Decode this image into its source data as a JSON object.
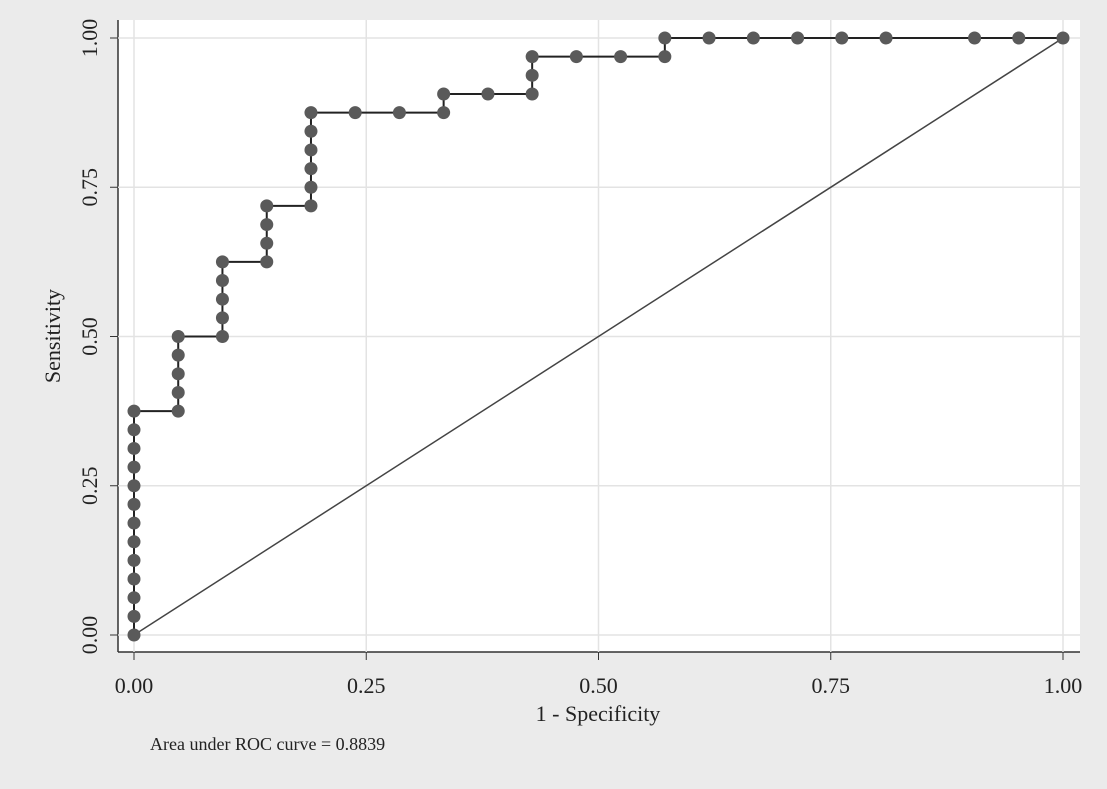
{
  "chart_data": {
    "type": "line",
    "ylabel": "Sensitivity",
    "xlabel": "1 - Specificity",
    "note": "Area under ROC curve = 0.8839",
    "color": "#5a5a5a",
    "grid": true,
    "x": [
      0,
      0,
      0,
      0,
      0,
      0,
      0,
      0,
      0,
      0,
      0,
      0,
      0,
      0.0476,
      0.0476,
      0.0476,
      0.0476,
      0.0476,
      0.0952,
      0.0952,
      0.0952,
      0.0952,
      0.0952,
      0.1429,
      0.1429,
      0.1429,
      0.1429,
      0.1905,
      0.1905,
      0.1905,
      0.1905,
      0.1905,
      0.1905,
      0.2381,
      0.2857,
      0.3333,
      0.3333,
      0.381,
      0.4286,
      0.4286,
      0.4286,
      0.4762,
      0.5238,
      0.5714,
      0.5714,
      0.619,
      0.6667,
      0.7143,
      0.7619,
      0.8095,
      0.9048,
      0.9524,
      1
    ],
    "values": [
      0,
      0.03125,
      0.0625,
      0.09375,
      0.125,
      0.15625,
      0.1875,
      0.21875,
      0.25,
      0.28125,
      0.3125,
      0.34375,
      0.375,
      0.375,
      0.40625,
      0.4375,
      0.46875,
      0.5,
      0.5,
      0.53125,
      0.5625,
      0.59375,
      0.625,
      0.625,
      0.65625,
      0.6875,
      0.71875,
      0.71875,
      0.75,
      0.78125,
      0.8125,
      0.84375,
      0.875,
      0.875,
      0.875,
      0.875,
      0.90625,
      0.90625,
      0.90625,
      0.9375,
      0.96875,
      0.96875,
      0.96875,
      0.96875,
      1,
      1,
      1,
      1,
      1,
      1,
      1,
      1,
      1
    ],
    "xlim": [
      0,
      1
    ],
    "ylim": [
      0,
      1
    ],
    "xticks": [
      {
        "value": 0,
        "label": "0.00"
      },
      {
        "value": 0.25,
        "label": "0.25"
      },
      {
        "value": 0.5,
        "label": "0.50"
      },
      {
        "value": 0.75,
        "label": "0.75"
      },
      {
        "value": 1,
        "label": "1.00"
      }
    ],
    "yticks": [
      {
        "value": 0,
        "label": "0.00"
      },
      {
        "value": 0.25,
        "label": "0.25"
      },
      {
        "value": 0.5,
        "label": "0.50"
      },
      {
        "value": 0.75,
        "label": "0.75"
      },
      {
        "value": 1,
        "label": "1.00"
      }
    ]
  }
}
